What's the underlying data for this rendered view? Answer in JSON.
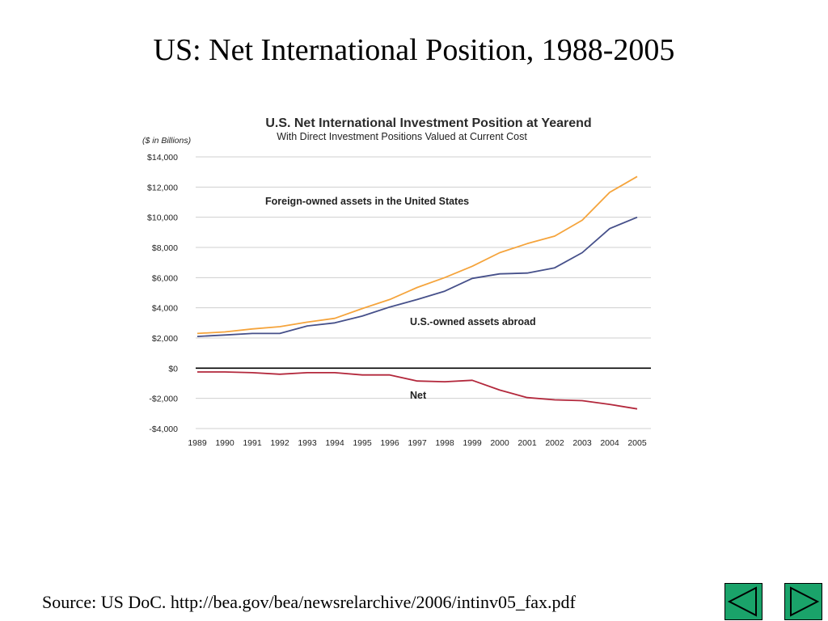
{
  "slide": {
    "title": "US: Net International Position, 1988-2005",
    "source": "Source: US DoC. http://bea.gov/bea/newsrelarchive/2006/intinv05_fax.pdf"
  },
  "navigation": {
    "prev_icon": "triangle-left-icon",
    "next_icon": "triangle-right-icon"
  },
  "chart_data": {
    "type": "line",
    "title": "U.S. Net International Investment Position at Yearend",
    "subtitle": "With Direct Investment Positions Valued at Current Cost",
    "unit_label": "($ in Billions)",
    "x": [
      "1989",
      "1990",
      "1991",
      "1992",
      "1993",
      "1994",
      "1995",
      "1996",
      "1997",
      "1998",
      "1999",
      "2000",
      "2001",
      "2002",
      "2003",
      "2004",
      "2005"
    ],
    "ylim": [
      -4000,
      14000
    ],
    "yticks": [
      14000,
      12000,
      10000,
      8000,
      6000,
      4000,
      2000,
      0,
      -2000,
      -4000
    ],
    "ytick_labels": [
      "$14,000",
      "$12,000",
      "$10,000",
      "$8,000",
      "$6,000",
      "$4,000",
      "$2,000",
      "$0",
      "-$2,000",
      "-$4,000"
    ],
    "grid": true,
    "series": [
      {
        "name": "Foreign-owned assets in the United States",
        "color": "#f5a43c",
        "values": [
          2300,
          2400,
          2600,
          2750,
          3050,
          3300,
          3950,
          4550,
          5350,
          6000,
          6750,
          7650,
          8250,
          8750,
          9800,
          11650,
          12700
        ]
      },
      {
        "name": "U.S.-owned assets abroad",
        "color": "#46508a",
        "values": [
          2100,
          2200,
          2300,
          2300,
          2800,
          3000,
          3450,
          4050,
          4550,
          5100,
          5950,
          6250,
          6300,
          6650,
          7650,
          9250,
          10000
        ]
      },
      {
        "name": "Net",
        "color": "#b3283c",
        "values": [
          -250,
          -250,
          -300,
          -400,
          -300,
          -300,
          -450,
          -450,
          -850,
          -900,
          -800,
          -1450,
          -1950,
          -2100,
          -2150,
          -2400,
          -2700
        ]
      }
    ]
  }
}
